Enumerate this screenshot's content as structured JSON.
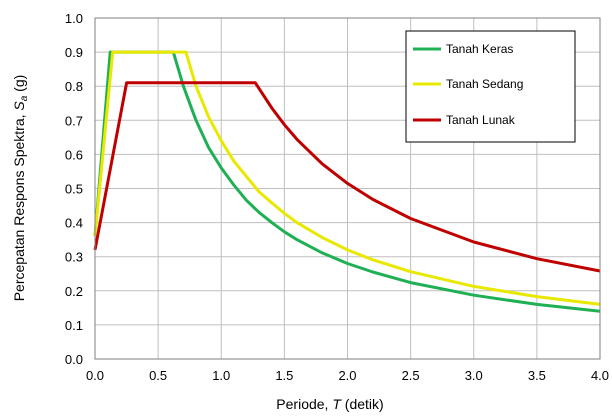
{
  "chart_data": {
    "type": "line",
    "xlabel": {
      "prefix": "Periode, ",
      "var": "T",
      "suffix": " (detik)"
    },
    "ylabel": {
      "prefix": "Percepatan Respons Spektra, ",
      "var": "S",
      "sub": "a",
      "suffix": " (g)"
    },
    "xlim": [
      0,
      4.0
    ],
    "ylim": [
      0,
      1.0
    ],
    "xticks": [
      "0.0",
      "0.5",
      "1.0",
      "1.5",
      "2.0",
      "2.5",
      "3.0",
      "3.5",
      "4.0"
    ],
    "yticks": [
      "0.0",
      "0.1",
      "0.2",
      "0.3",
      "0.4",
      "0.5",
      "0.6",
      "0.7",
      "0.8",
      "0.9",
      "1.0"
    ],
    "grid": true,
    "legend_position": "top-right",
    "series": [
      {
        "name": "Tanah Keras",
        "color": "#1fb054",
        "x": [
          0,
          0.12,
          0.62,
          0.7,
          0.8,
          0.9,
          1.0,
          1.1,
          1.2,
          1.3,
          1.4,
          1.5,
          1.6,
          1.8,
          2.0,
          2.2,
          2.5,
          3.0,
          3.5,
          4.0
        ],
        "y": [
          0.36,
          0.9,
          0.9,
          0.8,
          0.7,
          0.62,
          0.56,
          0.51,
          0.465,
          0.43,
          0.4,
          0.373,
          0.35,
          0.311,
          0.28,
          0.255,
          0.224,
          0.187,
          0.16,
          0.14
        ]
      },
      {
        "name": "Tanah Sedang",
        "color": "#e8e800",
        "x": [
          0,
          0.14,
          0.72,
          0.8,
          0.9,
          1.0,
          1.1,
          1.2,
          1.3,
          1.4,
          1.5,
          1.6,
          1.8,
          2.0,
          2.2,
          2.5,
          3.0,
          3.5,
          4.0
        ],
        "y": [
          0.36,
          0.9,
          0.9,
          0.8,
          0.71,
          0.64,
          0.58,
          0.535,
          0.49,
          0.458,
          0.427,
          0.4,
          0.356,
          0.32,
          0.291,
          0.256,
          0.213,
          0.183,
          0.16
        ]
      },
      {
        "name": "Tanah Lunak",
        "color": "#c00000",
        "x": [
          0,
          0.25,
          1.27,
          1.4,
          1.5,
          1.6,
          1.8,
          2.0,
          2.2,
          2.5,
          3.0,
          3.5,
          4.0
        ],
        "y": [
          0.32,
          0.81,
          0.81,
          0.736,
          0.687,
          0.644,
          0.572,
          0.515,
          0.468,
          0.412,
          0.343,
          0.294,
          0.258
        ]
      }
    ]
  }
}
